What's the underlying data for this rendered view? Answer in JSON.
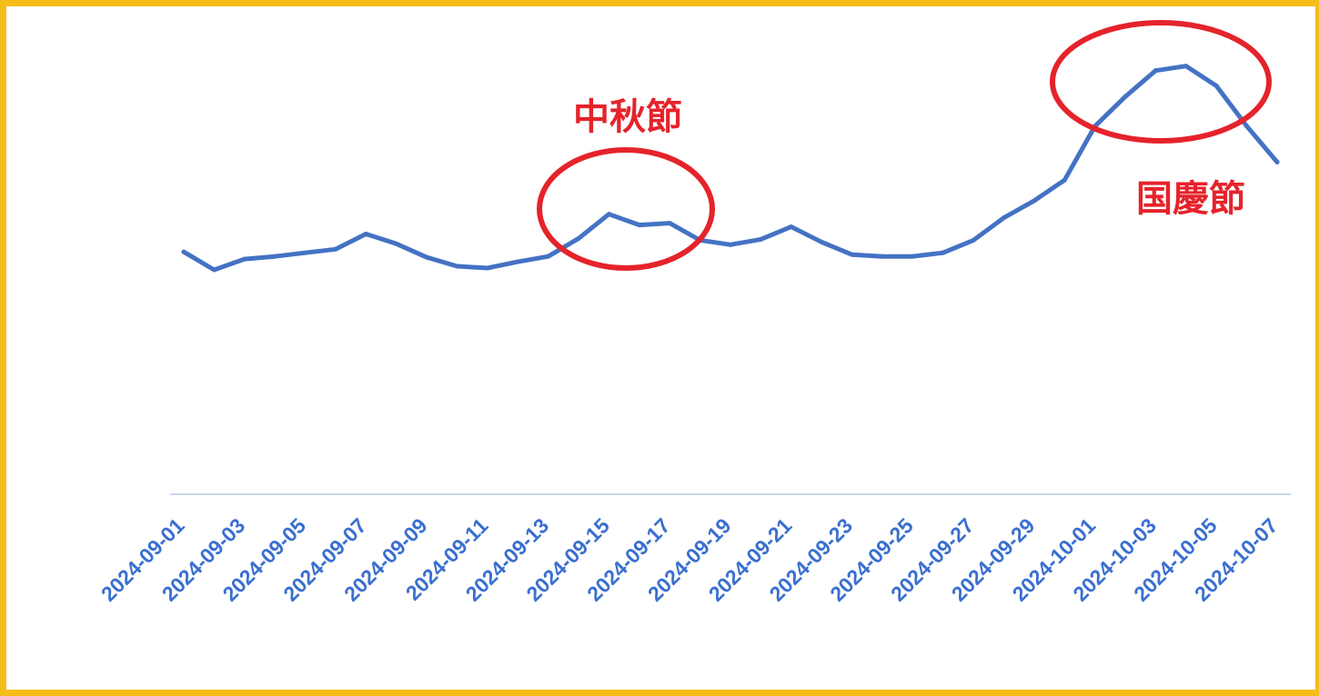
{
  "chart_data": {
    "type": "line",
    "title": "",
    "xlabel": "",
    "ylabel": "",
    "x": [
      "2024-09-01",
      "2024-09-02",
      "2024-09-03",
      "2024-09-04",
      "2024-09-05",
      "2024-09-06",
      "2024-09-07",
      "2024-09-08",
      "2024-09-09",
      "2024-09-10",
      "2024-09-11",
      "2024-09-12",
      "2024-09-13",
      "2024-09-14",
      "2024-09-15",
      "2024-09-16",
      "2024-09-17",
      "2024-09-18",
      "2024-09-19",
      "2024-09-20",
      "2024-09-21",
      "2024-09-22",
      "2024-09-23",
      "2024-09-24",
      "2024-09-25",
      "2024-09-26",
      "2024-09-27",
      "2024-09-28",
      "2024-09-29",
      "2024-09-30",
      "2024-10-01",
      "2024-10-02",
      "2024-10-03",
      "2024-10-04",
      "2024-10-05",
      "2024-10-06",
      "2024-10-07"
    ],
    "tick_labels": [
      "2024-09-01",
      "2024-09-03",
      "2024-09-05",
      "2024-09-07",
      "2024-09-09",
      "2024-09-11",
      "2024-09-13",
      "2024-09-15",
      "2024-09-17",
      "2024-09-19",
      "2024-09-21",
      "2024-09-23",
      "2024-09-25",
      "2024-09-27",
      "2024-09-29",
      "2024-10-01",
      "2024-10-03",
      "2024-10-05",
      "2024-10-07"
    ],
    "series": [
      {
        "values": [
          270,
          250,
          262,
          265,
          269,
          273,
          290,
          279,
          264,
          254,
          252,
          259,
          265,
          285,
          312,
          300,
          302,
          283,
          278,
          284,
          298,
          281,
          267,
          265,
          265,
          269,
          283,
          308,
          327,
          350,
          410,
          443,
          472,
          477,
          455,
          410,
          370
        ],
        "color": "#4472C4"
      }
    ],
    "ylim": [
      0,
      500
    ],
    "grid": false,
    "legend": "none",
    "axis_color": "#C9D6EC",
    "tick_label_color": "#3A6FD0",
    "annotations": [
      {
        "text": "中秋節",
        "target_x": "2024-09-17",
        "color": "#E5232B"
      },
      {
        "text": "国慶節",
        "target_x": "2024-10-04",
        "color": "#E5232B"
      }
    ]
  }
}
